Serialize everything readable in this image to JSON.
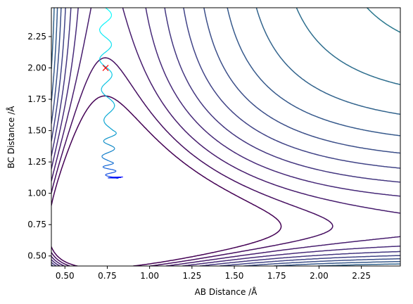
{
  "chart_data": {
    "type": "contour",
    "title": "",
    "xlabel": "AB Distance /Å",
    "ylabel": "BC Distance /Å",
    "xlim": [
      0.42,
      2.48
    ],
    "ylim": [
      0.42,
      2.48
    ],
    "xticks": [
      0.5,
      0.75,
      1.0,
      1.25,
      1.5,
      1.75,
      2.0,
      2.25
    ],
    "xtick_labels": [
      "0.50",
      "0.75",
      "1.00",
      "1.25",
      "1.50",
      "1.75",
      "2.00",
      "2.25"
    ],
    "yticks": [
      0.5,
      0.75,
      1.0,
      1.25,
      1.5,
      1.75,
      2.0,
      2.25
    ],
    "ytick_labels": [
      "0.50",
      "0.75",
      "1.00",
      "1.25",
      "1.50",
      "1.75",
      "2.00",
      "2.25"
    ],
    "grid": false,
    "colormap": "viridis",
    "contour_levels": 26,
    "start_marker": {
      "x": 0.74,
      "y": 2.0,
      "symbol": "x",
      "color": "#ff0000"
    },
    "trajectory": {
      "colormap": "winter",
      "points": [
        [
          0.74,
          2.48
        ],
        [
          0.74,
          2.0
        ],
        [
          0.77,
          1.5
        ],
        [
          0.75,
          1.25
        ],
        [
          0.78,
          1.12
        ],
        [
          0.81,
          1.13
        ]
      ]
    }
  }
}
